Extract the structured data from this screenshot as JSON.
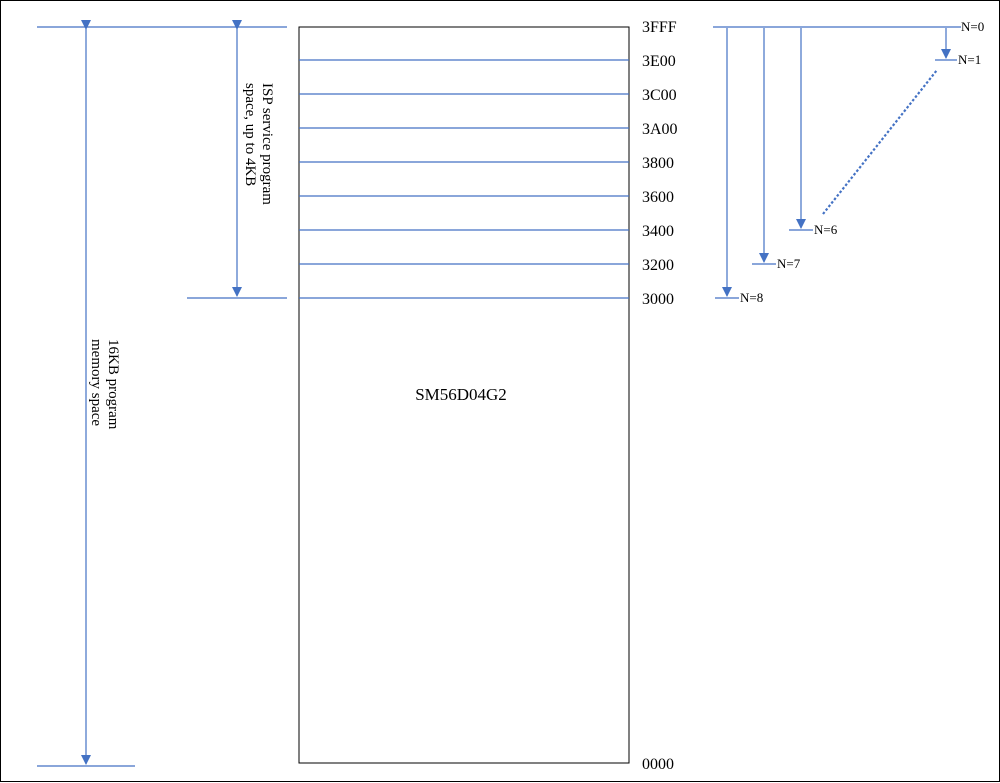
{
  "chip": {
    "name": "SM56D04G2"
  },
  "addresses": [
    "3FFF",
    "3E00",
    "3C00",
    "3A00",
    "3800",
    "3600",
    "3400",
    "3200",
    "3000",
    "0000"
  ],
  "isp_label": {
    "line1": "ISP service program",
    "line2": "space, up to 4KB"
  },
  "mem_label": {
    "line1": "16KB program",
    "line2": "memory space"
  },
  "n_labels": [
    "N=0",
    "N=1",
    "N=6",
    "N=7",
    "N=8"
  ],
  "colors": {
    "line": "#4472c4",
    "arrow": "#4472c4",
    "box": "#000000",
    "text": "#000000"
  }
}
